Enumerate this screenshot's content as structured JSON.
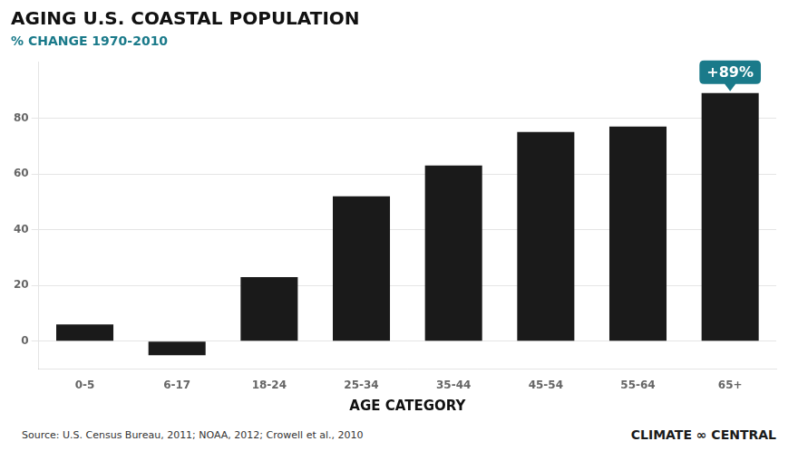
{
  "chart_data": {
    "type": "bar",
    "title": "AGING U.S. COASTAL POPULATION",
    "subtitle": "% CHANGE 1970-2010",
    "x_label": "AGE CATEGORY",
    "categories": [
      "0-5",
      "6-17",
      "18-24",
      "25-34",
      "35-44",
      "45-54",
      "55-64",
      "65+"
    ],
    "values": [
      6,
      -5,
      23,
      52,
      63,
      75,
      77,
      89
    ],
    "color": "#1a1a1a",
    "ylim": [
      -10,
      100
    ],
    "yticks": [
      0,
      20,
      40,
      60,
      80
    ],
    "grid": true,
    "annotations": [
      {
        "text": "+89%",
        "category": "65+"
      }
    ],
    "source": "Source: U.S. Census Bureau, 2011; NOAA, 2012; Crowell et al., 2010",
    "credit": "CLIMATE ∞ CENTRAL"
  }
}
